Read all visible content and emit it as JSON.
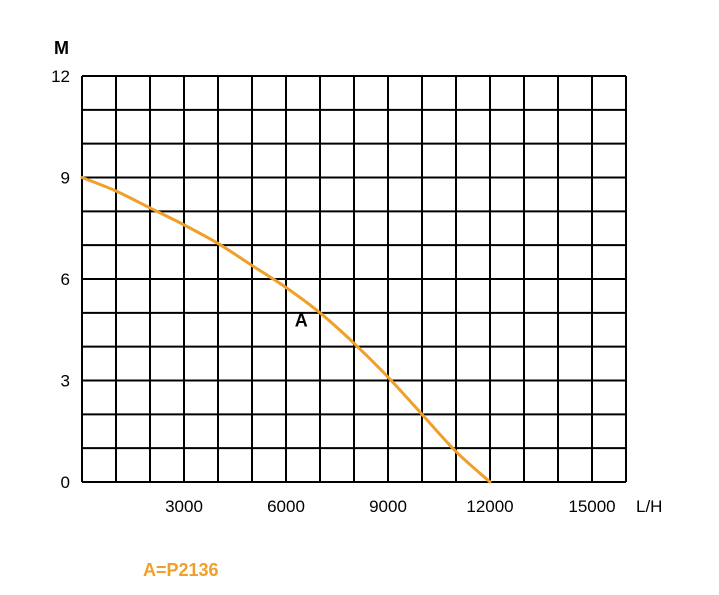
{
  "chart_data": {
    "type": "line",
    "ylabel": "M",
    "xlabel": "L/H",
    "xlim": [
      0,
      16000
    ],
    "ylim": [
      0,
      12
    ],
    "x_ticks": [
      3000,
      6000,
      9000,
      12000,
      15000
    ],
    "x_tick_labels": [
      "3000",
      "6000",
      "9000",
      "12000",
      "15000"
    ],
    "y_ticks": [
      0,
      3,
      6,
      9,
      12
    ],
    "y_tick_labels": [
      "0",
      "3",
      "6",
      "9",
      "12"
    ],
    "grid": true,
    "grid_x_step": 1000,
    "grid_y_step": 1,
    "series": [
      {
        "name": "A",
        "color": "#F0A028",
        "x": [
          0,
          1000,
          2000,
          3000,
          4000,
          5000,
          6000,
          7000,
          8000,
          9000,
          10000,
          11000,
          12000
        ],
        "y": [
          9,
          8.6,
          8.1,
          7.6,
          7.05,
          6.4,
          5.75,
          5.0,
          4.1,
          3.1,
          2.0,
          0.9,
          0
        ]
      }
    ],
    "annotations": [
      {
        "text": "A",
        "x": 6450,
        "y": 4.6
      }
    ],
    "legend": [
      {
        "text": "A=P2136",
        "color": "#F0A028"
      }
    ]
  }
}
